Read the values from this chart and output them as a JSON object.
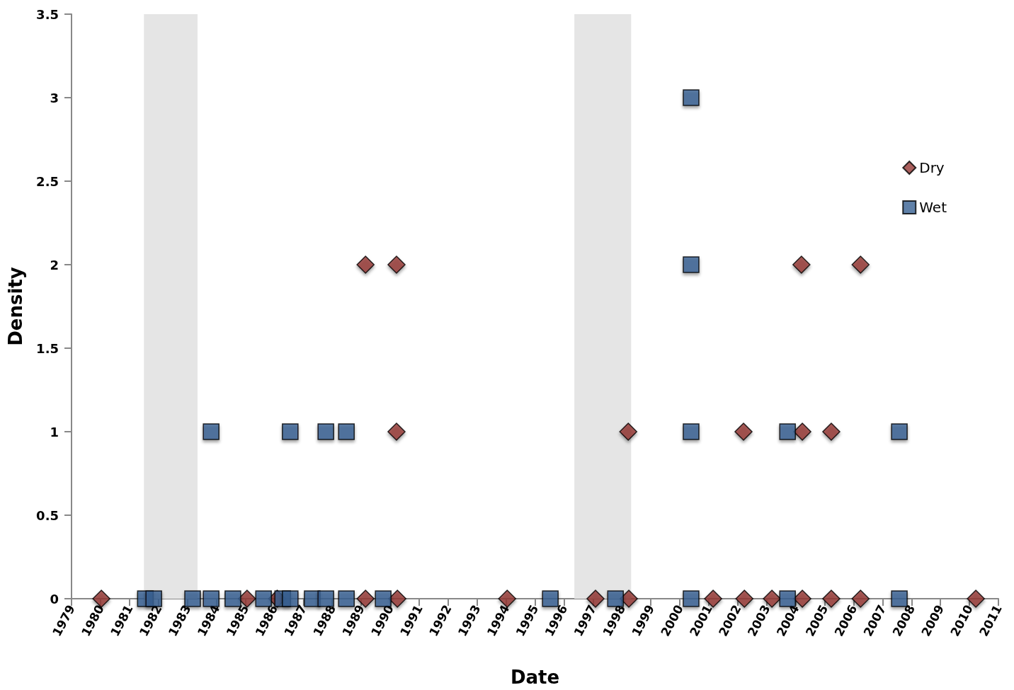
{
  "chart_data": {
    "type": "scatter",
    "xlabel": "Date",
    "ylabel": "Density",
    "xlim": [
      1979,
      2011
    ],
    "xticks": [
      1979,
      1980,
      1981,
      1982,
      1983,
      1984,
      1985,
      1986,
      1987,
      1988,
      1989,
      1990,
      1991,
      1992,
      1993,
      1994,
      1995,
      1996,
      1997,
      1998,
      1999,
      2000,
      2001,
      2002,
      2003,
      2004,
      2005,
      2006,
      2007,
      2008,
      2009,
      2010,
      2011
    ],
    "ylim": [
      0,
      3.5
    ],
    "yticks": [
      0,
      0.5,
      1,
      1.5,
      2,
      2.5,
      3,
      3.5
    ],
    "grid": false,
    "legend": "right",
    "bands": [
      {
        "axis": "x",
        "from": 1981.5,
        "to": 1983.35,
        "color": "#e5e5e5"
      },
      {
        "axis": "x",
        "from": 1996.36,
        "to": 1998.32,
        "color": "#e5e5e5"
      }
    ],
    "series": [
      {
        "name": "Dry",
        "color": "#953735",
        "marker": "diamond",
        "x": [
          1980.03,
          1985.06,
          1986.1,
          1989.15,
          1990.25,
          1994.04,
          1997.09,
          1998.24,
          2001.15,
          2002.23,
          2003.18,
          2004.23,
          2005.23,
          2006.24,
          2010.22,
          1990.22,
          1998.22,
          2002.2,
          2004.23,
          2005.23,
          1989.15,
          1990.22,
          2004.2,
          2006.24
        ],
        "values": [
          0,
          0,
          0,
          0,
          0,
          0,
          0,
          0,
          0,
          0,
          0,
          0,
          0,
          0,
          0,
          1,
          1,
          1,
          1,
          1,
          2,
          2,
          2,
          2
        ]
      },
      {
        "name": "Wet",
        "color": "#376092",
        "marker": "square",
        "x": [
          1981.55,
          1981.84,
          1983.18,
          1983.82,
          1984.57,
          1985.63,
          1986.29,
          1986.55,
          1987.31,
          1987.78,
          1988.49,
          1989.76,
          1995.53,
          1997.78,
          2000.39,
          2003.72,
          2007.58,
          1983.82,
          1986.55,
          1987.78,
          1988.49,
          2000.39,
          2003.72,
          2007.58,
          2000.39,
          2000.39
        ],
        "values": [
          0,
          0,
          0,
          0,
          0,
          0,
          0,
          0,
          0,
          0,
          0,
          0,
          0,
          0,
          0,
          0,
          0,
          1,
          1,
          1,
          1,
          1,
          1,
          1,
          2,
          3
        ]
      }
    ]
  }
}
